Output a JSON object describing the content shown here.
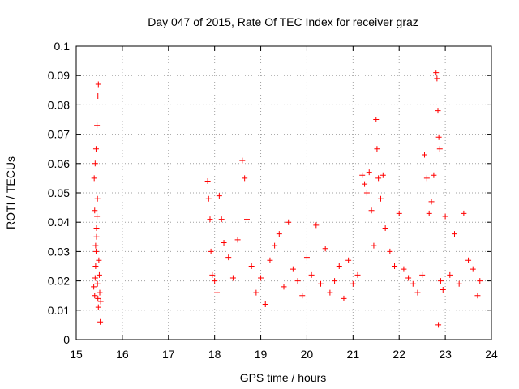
{
  "chart_data": {
    "type": "scatter",
    "title": "Day 047 of 2015, Rate Of TEC Index for receiver graz",
    "xlabel": "GPS time / hours",
    "ylabel": "ROTI / TECUs",
    "xlim": [
      15,
      24
    ],
    "ylim": [
      0,
      0.1
    ],
    "xticks": [
      "15",
      "16",
      "17",
      "18",
      "19",
      "20",
      "21",
      "22",
      "23",
      "24"
    ],
    "yticks": [
      "0",
      "0.01",
      "0.02",
      "0.03",
      "0.04",
      "0.05",
      "0.06",
      "0.07",
      "0.08",
      "0.09",
      "0.1"
    ],
    "grid": true,
    "marker": "plus",
    "color": "#ff0000",
    "series": [
      {
        "name": "ROTI",
        "points": [
          [
            15.38,
            0.018
          ],
          [
            15.4,
            0.015
          ],
          [
            15.41,
            0.021
          ],
          [
            15.42,
            0.025
          ],
          [
            15.43,
            0.03
          ],
          [
            15.44,
            0.035
          ],
          [
            15.45,
            0.042
          ],
          [
            15.46,
            0.019
          ],
          [
            15.47,
            0.014
          ],
          [
            15.48,
            0.011
          ],
          [
            15.39,
            0.055
          ],
          [
            15.41,
            0.06
          ],
          [
            15.43,
            0.065
          ],
          [
            15.45,
            0.073
          ],
          [
            15.47,
            0.083
          ],
          [
            15.48,
            0.087
          ],
          [
            15.46,
            0.048
          ],
          [
            15.44,
            0.038
          ],
          [
            15.5,
            0.022
          ],
          [
            15.52,
            0.006
          ],
          [
            15.51,
            0.016
          ],
          [
            15.49,
            0.027
          ],
          [
            15.42,
            0.032
          ],
          [
            15.4,
            0.044
          ],
          [
            15.53,
            0.013
          ],
          [
            17.85,
            0.054
          ],
          [
            17.87,
            0.048
          ],
          [
            17.9,
            0.041
          ],
          [
            17.92,
            0.03
          ],
          [
            17.95,
            0.022
          ],
          [
            18.0,
            0.02
          ],
          [
            18.05,
            0.016
          ],
          [
            18.1,
            0.049
          ],
          [
            18.15,
            0.041
          ],
          [
            18.2,
            0.033
          ],
          [
            18.3,
            0.028
          ],
          [
            18.4,
            0.021
          ],
          [
            18.5,
            0.034
          ],
          [
            18.6,
            0.061
          ],
          [
            18.65,
            0.055
          ],
          [
            18.7,
            0.041
          ],
          [
            18.8,
            0.025
          ],
          [
            18.9,
            0.016
          ],
          [
            19.0,
            0.021
          ],
          [
            19.1,
            0.012
          ],
          [
            19.2,
            0.027
          ],
          [
            19.3,
            0.032
          ],
          [
            19.4,
            0.036
          ],
          [
            19.5,
            0.018
          ],
          [
            19.6,
            0.04
          ],
          [
            19.7,
            0.024
          ],
          [
            19.8,
            0.02
          ],
          [
            19.9,
            0.015
          ],
          [
            20.0,
            0.028
          ],
          [
            20.1,
            0.022
          ],
          [
            20.2,
            0.039
          ],
          [
            20.3,
            0.019
          ],
          [
            20.4,
            0.031
          ],
          [
            20.5,
            0.016
          ],
          [
            20.6,
            0.02
          ],
          [
            20.7,
            0.025
          ],
          [
            20.8,
            0.014
          ],
          [
            20.9,
            0.027
          ],
          [
            21.0,
            0.019
          ],
          [
            21.1,
            0.022
          ],
          [
            21.2,
            0.056
          ],
          [
            21.25,
            0.053
          ],
          [
            21.3,
            0.05
          ],
          [
            21.35,
            0.057
          ],
          [
            21.4,
            0.044
          ],
          [
            21.45,
            0.032
          ],
          [
            21.5,
            0.075
          ],
          [
            21.52,
            0.065
          ],
          [
            21.55,
            0.055
          ],
          [
            21.6,
            0.048
          ],
          [
            21.65,
            0.056
          ],
          [
            21.7,
            0.038
          ],
          [
            21.8,
            0.03
          ],
          [
            21.9,
            0.025
          ],
          [
            22.0,
            0.043
          ],
          [
            22.1,
            0.024
          ],
          [
            22.2,
            0.021
          ],
          [
            22.3,
            0.019
          ],
          [
            22.4,
            0.016
          ],
          [
            22.5,
            0.022
          ],
          [
            22.55,
            0.063
          ],
          [
            22.6,
            0.055
          ],
          [
            22.65,
            0.043
          ],
          [
            22.7,
            0.047
          ],
          [
            22.75,
            0.056
          ],
          [
            22.8,
            0.091
          ],
          [
            22.82,
            0.089
          ],
          [
            22.84,
            0.078
          ],
          [
            22.86,
            0.069
          ],
          [
            22.88,
            0.065
          ],
          [
            22.9,
            0.02
          ],
          [
            22.95,
            0.017
          ],
          [
            23.0,
            0.042
          ],
          [
            23.1,
            0.022
          ],
          [
            23.2,
            0.036
          ],
          [
            23.3,
            0.019
          ],
          [
            23.4,
            0.043
          ],
          [
            23.5,
            0.027
          ],
          [
            23.6,
            0.024
          ],
          [
            23.7,
            0.015
          ],
          [
            23.75,
            0.02
          ],
          [
            22.85,
            0.005
          ]
        ]
      }
    ]
  }
}
